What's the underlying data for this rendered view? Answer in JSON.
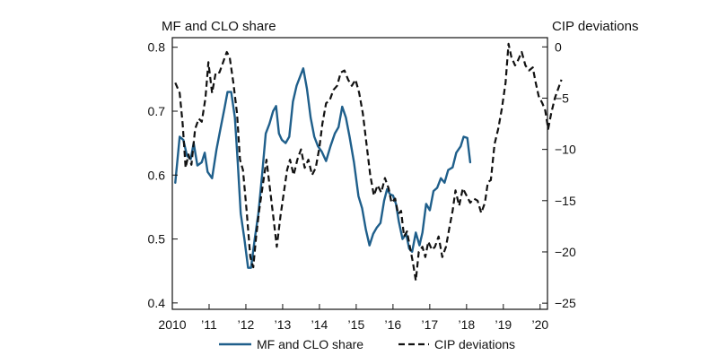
{
  "chart_data": {
    "type": "line",
    "left_axis_title": "MF and CLO share",
    "right_axis_title": "CIP deviations",
    "x_range": [
      2010.0,
      2020.2
    ],
    "x_ticks": [
      {
        "value": 2010,
        "label": "2010"
      },
      {
        "value": 2011,
        "label": "’11"
      },
      {
        "value": 2012,
        "label": "’12"
      },
      {
        "value": 2013,
        "label": "’13"
      },
      {
        "value": 2014,
        "label": "’14"
      },
      {
        "value": 2015,
        "label": "’15"
      },
      {
        "value": 2016,
        "label": "’16"
      },
      {
        "value": 2017,
        "label": "’17"
      },
      {
        "value": 2018,
        "label": "’18"
      },
      {
        "value": 2019,
        "label": "’19"
      },
      {
        "value": 2020,
        "label": "’20"
      }
    ],
    "left_range": [
      0.39,
      0.815
    ],
    "left_ticks": [
      {
        "value": 0.4,
        "label": "0.4"
      },
      {
        "value": 0.5,
        "label": "0.5"
      },
      {
        "value": 0.6,
        "label": "0.6"
      },
      {
        "value": 0.7,
        "label": "0.7"
      },
      {
        "value": 0.8,
        "label": "0.8"
      }
    ],
    "right_range": [
      -25.6,
      0.9
    ],
    "right_ticks": [
      {
        "value": 0,
        "label": "0"
      },
      {
        "value": -5,
        "label": "−5"
      },
      {
        "value": -10,
        "label": "−10"
      },
      {
        "value": -15,
        "label": "−15"
      },
      {
        "value": -20,
        "label": "−20"
      },
      {
        "value": -25,
        "label": "−25"
      }
    ],
    "grid": false,
    "legend_position": "bottom",
    "series": [
      {
        "name": "MF and CLO share",
        "axis": "left",
        "color": "#1f5f8b",
        "style": "solid",
        "points": [
          [
            2010.08,
            0.588
          ],
          [
            2010.2,
            0.66
          ],
          [
            2010.3,
            0.655
          ],
          [
            2010.4,
            0.63
          ],
          [
            2010.5,
            0.625
          ],
          [
            2010.58,
            0.65
          ],
          [
            2010.68,
            0.615
          ],
          [
            2010.8,
            0.62
          ],
          [
            2010.88,
            0.635
          ],
          [
            2010.96,
            0.605
          ],
          [
            2011.08,
            0.595
          ],
          [
            2011.2,
            0.64
          ],
          [
            2011.3,
            0.67
          ],
          [
            2011.42,
            0.705
          ],
          [
            2011.5,
            0.73
          ],
          [
            2011.6,
            0.73
          ],
          [
            2011.7,
            0.69
          ],
          [
            2011.78,
            0.62
          ],
          [
            2011.86,
            0.54
          ],
          [
            2011.96,
            0.5
          ],
          [
            2012.06,
            0.455
          ],
          [
            2012.14,
            0.455
          ],
          [
            2012.24,
            0.5
          ],
          [
            2012.34,
            0.54
          ],
          [
            2012.44,
            0.6
          ],
          [
            2012.54,
            0.665
          ],
          [
            2012.64,
            0.68
          ],
          [
            2012.74,
            0.7
          ],
          [
            2012.82,
            0.708
          ],
          [
            2012.9,
            0.665
          ],
          [
            2012.98,
            0.655
          ],
          [
            2013.08,
            0.65
          ],
          [
            2013.18,
            0.66
          ],
          [
            2013.28,
            0.715
          ],
          [
            2013.38,
            0.74
          ],
          [
            2013.48,
            0.755
          ],
          [
            2013.56,
            0.767
          ],
          [
            2013.66,
            0.735
          ],
          [
            2013.76,
            0.69
          ],
          [
            2013.86,
            0.66
          ],
          [
            2013.96,
            0.645
          ],
          [
            2014.06,
            0.637
          ],
          [
            2014.18,
            0.622
          ],
          [
            2014.3,
            0.645
          ],
          [
            2014.42,
            0.665
          ],
          [
            2014.52,
            0.675
          ],
          [
            2014.62,
            0.707
          ],
          [
            2014.72,
            0.69
          ],
          [
            2014.82,
            0.66
          ],
          [
            2014.94,
            0.62
          ],
          [
            2015.06,
            0.567
          ],
          [
            2015.16,
            0.548
          ],
          [
            2015.26,
            0.515
          ],
          [
            2015.36,
            0.49
          ],
          [
            2015.46,
            0.508
          ],
          [
            2015.56,
            0.518
          ],
          [
            2015.66,
            0.525
          ],
          [
            2015.76,
            0.56
          ],
          [
            2015.84,
            0.578
          ],
          [
            2015.92,
            0.57
          ],
          [
            2016.0,
            0.568
          ],
          [
            2016.08,
            0.555
          ],
          [
            2016.16,
            0.527
          ],
          [
            2016.26,
            0.5
          ],
          [
            2016.36,
            0.508
          ],
          [
            2016.44,
            0.485
          ],
          [
            2016.52,
            0.48
          ],
          [
            2016.62,
            0.51
          ],
          [
            2016.72,
            0.49
          ],
          [
            2016.8,
            0.51
          ],
          [
            2016.9,
            0.555
          ],
          [
            2017.0,
            0.545
          ],
          [
            2017.1,
            0.575
          ],
          [
            2017.2,
            0.58
          ],
          [
            2017.3,
            0.595
          ],
          [
            2017.4,
            0.588
          ],
          [
            2017.5,
            0.608
          ],
          [
            2017.62,
            0.612
          ],
          [
            2017.72,
            0.635
          ],
          [
            2017.84,
            0.645
          ],
          [
            2017.92,
            0.66
          ],
          [
            2018.02,
            0.658
          ],
          [
            2018.1,
            0.62
          ]
        ]
      },
      {
        "name": "CIP deviations",
        "axis": "right",
        "color": "#111111",
        "style": "dashed",
        "points": [
          [
            2010.08,
            -3.5
          ],
          [
            2010.2,
            -4.5
          ],
          [
            2010.28,
            -7.5
          ],
          [
            2010.36,
            -11.8
          ],
          [
            2010.44,
            -10.5
          ],
          [
            2010.52,
            -11.5
          ],
          [
            2010.62,
            -8
          ],
          [
            2010.72,
            -7
          ],
          [
            2010.8,
            -7.3
          ],
          [
            2010.9,
            -5
          ],
          [
            2010.98,
            -1.5
          ],
          [
            2011.08,
            -4.5
          ],
          [
            2011.18,
            -2.5
          ],
          [
            2011.28,
            -2.5
          ],
          [
            2011.38,
            -1.5
          ],
          [
            2011.48,
            -0.5
          ],
          [
            2011.56,
            -1
          ],
          [
            2011.66,
            -3.5
          ],
          [
            2011.76,
            -6.5
          ],
          [
            2011.84,
            -11
          ],
          [
            2011.92,
            -12
          ],
          [
            2012.02,
            -16
          ],
          [
            2012.12,
            -20.5
          ],
          [
            2012.2,
            -21.5
          ],
          [
            2012.28,
            -18.5
          ],
          [
            2012.36,
            -16
          ],
          [
            2012.46,
            -13.5
          ],
          [
            2012.56,
            -11
          ],
          [
            2012.66,
            -14
          ],
          [
            2012.76,
            -17
          ],
          [
            2012.84,
            -19.5
          ],
          [
            2012.94,
            -16.5
          ],
          [
            2013.04,
            -14
          ],
          [
            2013.12,
            -12
          ],
          [
            2013.2,
            -11
          ],
          [
            2013.3,
            -12.5
          ],
          [
            2013.4,
            -11
          ],
          [
            2013.5,
            -10
          ],
          [
            2013.6,
            -11.8
          ],
          [
            2013.7,
            -11
          ],
          [
            2013.8,
            -12.5
          ],
          [
            2013.9,
            -11.8
          ],
          [
            2014.0,
            -9.8
          ],
          [
            2014.08,
            -7.5
          ],
          [
            2014.18,
            -5.5
          ],
          [
            2014.28,
            -5.2
          ],
          [
            2014.38,
            -4.2
          ],
          [
            2014.48,
            -3.8
          ],
          [
            2014.58,
            -2.5
          ],
          [
            2014.68,
            -2.3
          ],
          [
            2014.78,
            -3.2
          ],
          [
            2014.88,
            -3.8
          ],
          [
            2014.98,
            -3.2
          ],
          [
            2015.08,
            -4.5
          ],
          [
            2015.18,
            -6.5
          ],
          [
            2015.28,
            -9.5
          ],
          [
            2015.38,
            -12.5
          ],
          [
            2015.48,
            -14.5
          ],
          [
            2015.58,
            -13.5
          ],
          [
            2015.68,
            -14.2
          ],
          [
            2015.78,
            -12.8
          ],
          [
            2015.88,
            -13.8
          ],
          [
            2015.96,
            -15.2
          ],
          [
            2016.06,
            -14.8
          ],
          [
            2016.14,
            -16.3
          ],
          [
            2016.22,
            -16
          ],
          [
            2016.3,
            -18.5
          ],
          [
            2016.38,
            -18
          ],
          [
            2016.46,
            -19.5
          ],
          [
            2016.54,
            -21
          ],
          [
            2016.62,
            -22.8
          ],
          [
            2016.7,
            -20
          ],
          [
            2016.8,
            -19.5
          ],
          [
            2016.88,
            -20.5
          ],
          [
            2016.96,
            -19
          ],
          [
            2017.06,
            -19.8
          ],
          [
            2017.14,
            -19.5
          ],
          [
            2017.24,
            -18.5
          ],
          [
            2017.34,
            -20.5
          ],
          [
            2017.44,
            -19.5
          ],
          [
            2017.54,
            -17.5
          ],
          [
            2017.62,
            -16
          ],
          [
            2017.7,
            -14
          ],
          [
            2017.8,
            -15.5
          ],
          [
            2017.9,
            -13.8
          ],
          [
            2018.0,
            -14.5
          ],
          [
            2018.1,
            -15.2
          ],
          [
            2018.2,
            -14.8
          ],
          [
            2018.3,
            -15
          ],
          [
            2018.4,
            -16.2
          ],
          [
            2018.5,
            -15.2
          ],
          [
            2018.58,
            -13.2
          ],
          [
            2018.66,
            -13
          ],
          [
            2018.76,
            -9.5
          ],
          [
            2018.86,
            -8
          ],
          [
            2018.96,
            -6
          ],
          [
            2019.06,
            -3.5
          ],
          [
            2019.14,
            0.3
          ],
          [
            2019.22,
            -1
          ],
          [
            2019.32,
            -1.8
          ],
          [
            2019.4,
            -1.3
          ],
          [
            2019.5,
            -0.5
          ],
          [
            2019.6,
            -1.8
          ],
          [
            2019.7,
            -2.3
          ],
          [
            2019.8,
            -2
          ],
          [
            2019.88,
            -3.5
          ],
          [
            2019.96,
            -4.8
          ],
          [
            2020.06,
            -5.5
          ],
          [
            2020.14,
            -6.2
          ],
          [
            2020.22,
            -8
          ],
          [
            2020.3,
            -6.5
          ],
          [
            2020.4,
            -5
          ],
          [
            2020.5,
            -4
          ],
          [
            2020.58,
            -3.2
          ]
        ]
      }
    ]
  }
}
